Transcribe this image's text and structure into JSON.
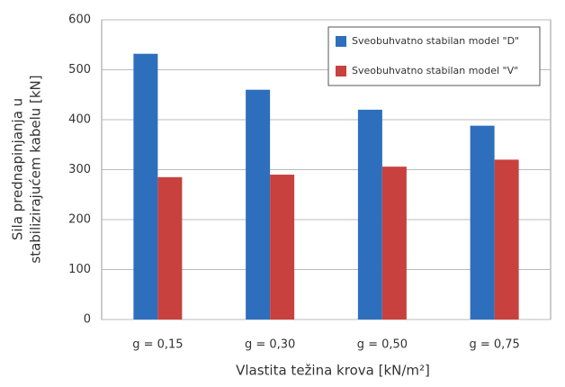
{
  "chart_data": {
    "type": "bar",
    "ylabel": [
      "Sila prednapinjanja u",
      "stabilizirajućem kabelu [kN]"
    ],
    "xlabel": "Vlastita težina krova [kN/m²]",
    "categories": [
      "g = 0,15",
      "g = 0,30",
      "g = 0,50",
      "g = 0,75"
    ],
    "series": [
      {
        "name": "Sveobuhvatno stabilan model \"D\"",
        "color": "#2e6fbd",
        "values": [
          532,
          460,
          420,
          388
        ]
      },
      {
        "name": "Sveobuhvatno stabilan model \"V\"",
        "color": "#c8413f",
        "values": [
          285,
          290,
          306,
          320
        ]
      }
    ],
    "ylim": [
      0,
      600
    ],
    "yticks": [
      0,
      100,
      200,
      300,
      400,
      500,
      600
    ],
    "grid": true,
    "legend": "upper right"
  }
}
